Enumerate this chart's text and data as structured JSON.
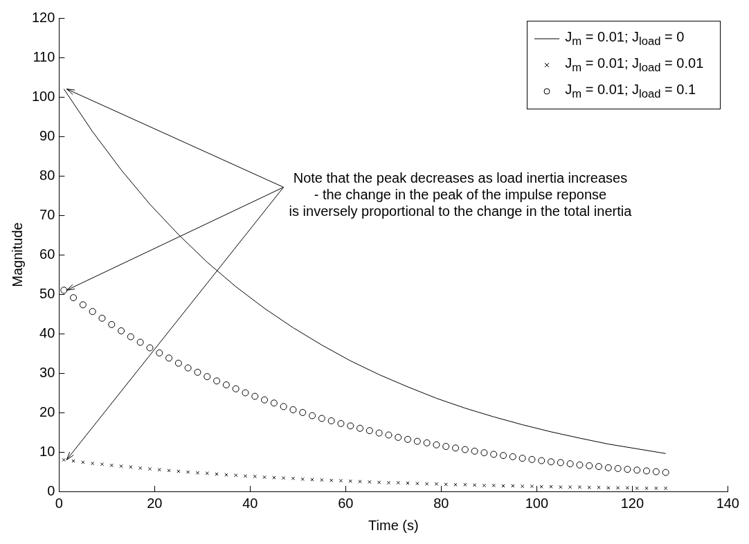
{
  "chart_data": {
    "type": "line",
    "xlabel": "Time (s)",
    "ylabel": "Magnitude",
    "xlim": [
      0,
      140
    ],
    "xticks": [
      0,
      20,
      40,
      60,
      80,
      100,
      120,
      140
    ],
    "ylim": [
      0,
      120
    ],
    "yticks": [
      0,
      10,
      20,
      30,
      40,
      50,
      60,
      70,
      80,
      90,
      100,
      110,
      120
    ],
    "grid": false,
    "legend": "top right",
    "annotations": [
      {
        "text": "Note that the peak decreases as load inertia increases\n- the change in the peak of the impulse reponse\nis inversely proportional to the change in the total inertia",
        "x": 1,
        "y": 102
      }
    ],
    "series": [
      {
        "name": "J$_{m}$ = 0.01; J$_{load}$ = 0",
        "color": "#000000",
        "marker": "none",
        "line_style": "solid",
        "x": [
          1,
          7,
          13,
          19,
          25,
          31,
          37,
          43,
          49,
          55,
          61,
          67,
          73,
          79,
          85,
          91,
          97,
          103,
          109,
          115,
          121,
          127
        ],
        "values": [
          102,
          91.2,
          81.5,
          72.8,
          65.1,
          58.1,
          51.9,
          46.4,
          41.5,
          37.1,
          33.1,
          29.6,
          26.5,
          23.6,
          21.1,
          18.9,
          16.9,
          15.1,
          13.5,
          12.0,
          10.8,
          9.6
        ]
      },
      {
        "name": "J$_{m}$ = 0.01; J$_{load}$ = 0.01",
        "type": "scatter",
        "color": "#000000",
        "marker": "cross",
        "x": [
          1,
          3,
          5,
          7,
          9,
          11,
          13,
          15,
          17,
          19,
          21,
          23,
          25,
          27,
          29,
          31,
          33,
          35,
          37,
          39,
          41,
          43,
          45,
          47,
          49,
          51,
          53,
          55,
          57,
          59,
          61,
          63,
          65,
          67,
          69,
          71,
          73,
          75,
          77,
          79,
          81,
          83,
          85,
          87,
          89,
          91,
          93,
          95,
          97,
          99,
          101,
          103,
          105,
          107,
          109,
          111,
          113,
          115,
          117,
          119,
          121,
          123,
          125,
          127
        ],
        "values": [
          8.0,
          7.7,
          7.4,
          7.1,
          6.9,
          6.6,
          6.4,
          6.2,
          5.9,
          5.7,
          5.5,
          5.3,
          5.1,
          4.9,
          4.7,
          4.6,
          4.4,
          4.2,
          4.1,
          3.9,
          3.8,
          3.6,
          3.5,
          3.4,
          3.3,
          3.1,
          3.0,
          2.9,
          2.8,
          2.7,
          2.6,
          2.5,
          2.4,
          2.3,
          2.2,
          2.2,
          2.1,
          2.0,
          1.9,
          1.9,
          1.8,
          1.7,
          1.7,
          1.6,
          1.5,
          1.5,
          1.4,
          1.4,
          1.3,
          1.3,
          1.2,
          1.2,
          1.1,
          1.1,
          1.1,
          1.0,
          1.0,
          0.9,
          0.9,
          0.9,
          0.8,
          0.8,
          0.8,
          0.8
        ]
      },
      {
        "name": "J$_{m}$ = 0.01; J$_{load}$ = 0.1",
        "type": "scatter",
        "color": "#000000",
        "marker": "circle",
        "x": [
          1,
          3,
          5,
          7,
          9,
          11,
          13,
          15,
          17,
          19,
          21,
          23,
          25,
          27,
          29,
          31,
          33,
          35,
          37,
          39,
          41,
          43,
          45,
          47,
          49,
          51,
          53,
          55,
          57,
          59,
          61,
          63,
          65,
          67,
          69,
          71,
          73,
          75,
          77,
          79,
          81,
          83,
          85,
          87,
          89,
          91,
          93,
          95,
          97,
          99,
          101,
          103,
          105,
          107,
          109,
          111,
          113,
          115,
          117,
          119,
          121,
          123,
          125,
          127
        ],
        "values": [
          51,
          49.1,
          47.3,
          45.6,
          43.9,
          42.3,
          40.7,
          39.2,
          37.8,
          36.4,
          35.1,
          33.8,
          32.5,
          31.3,
          30.2,
          29.1,
          28.0,
          27.0,
          26.0,
          25.0,
          24.1,
          23.2,
          22.4,
          21.5,
          20.7,
          20.0,
          19.2,
          18.5,
          17.9,
          17.2,
          16.6,
          16.0,
          15.4,
          14.8,
          14.3,
          13.7,
          13.2,
          12.7,
          12.3,
          11.8,
          11.4,
          11.0,
          10.6,
          10.2,
          9.8,
          9.4,
          9.1,
          8.8,
          8.4,
          8.1,
          7.8,
          7.5,
          7.3,
          7.0,
          6.7,
          6.5,
          6.3,
          6.0,
          5.8,
          5.6,
          5.4,
          5.2,
          5.0,
          4.8
        ]
      }
    ]
  }
}
